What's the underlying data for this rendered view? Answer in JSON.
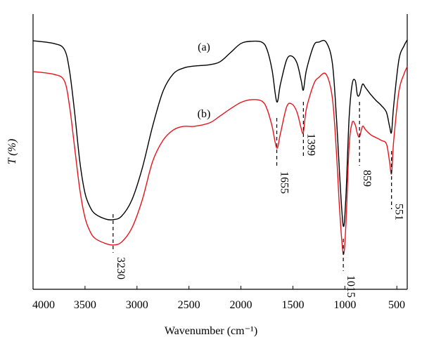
{
  "chart_data": {
    "type": "line",
    "xlabel": "Wavenumber (cm⁻¹)",
    "ylabel": "T (%)",
    "xlim": [
      4000,
      400
    ],
    "xticks": [
      4000,
      3500,
      3000,
      2500,
      2000,
      1500,
      1000,
      500
    ],
    "ylim": [
      0,
      100
    ],
    "x": [
      4000,
      3800,
      3700,
      3650,
      3600,
      3550,
      3500,
      3450,
      3400,
      3300,
      3230,
      3150,
      3050,
      2950,
      2850,
      2750,
      2650,
      2550,
      2450,
      2300,
      2200,
      2100,
      2000,
      1900,
      1800,
      1750,
      1700,
      1655,
      1620,
      1560,
      1510,
      1460,
      1420,
      1399,
      1370,
      1300,
      1250,
      1180,
      1120,
      1080,
      1050,
      1015,
      990,
      960,
      930,
      900,
      880,
      859,
      830,
      800,
      750,
      700,
      650,
      600,
      570,
      551,
      530,
      480,
      430,
      400
    ],
    "series": [
      {
        "name": "(a)",
        "color": "#000000",
        "values": [
          90.3,
          89.3,
          87.2,
          79.6,
          64.3,
          46.4,
          34.9,
          29.8,
          27.3,
          25.5,
          25.3,
          26.5,
          32.4,
          43.9,
          59.2,
          71.9,
          78.3,
          80.4,
          81.1,
          81.6,
          82.7,
          86.0,
          89.3,
          90.1,
          89.8,
          87.2,
          79.6,
          68.1,
          74.5,
          83.4,
          84.7,
          82.1,
          75.8,
          72.4,
          79.6,
          88.5,
          89.8,
          89.8,
          82.1,
          61.7,
          41.3,
          23.0,
          33.7,
          61.7,
          74.5,
          75.8,
          70.7,
          70.7,
          74.5,
          73.2,
          70.7,
          68.6,
          66.8,
          64.3,
          59.2,
          57.1,
          66.8,
          83.4,
          88.5,
          90.6
        ]
      },
      {
        "name": "(b)",
        "color": "#e8141c",
        "values": [
          79.1,
          78.1,
          75.8,
          66.8,
          51.5,
          36.2,
          26.0,
          20.9,
          18.4,
          16.6,
          16.1,
          17.1,
          22.2,
          32.4,
          46.4,
          54.1,
          57.9,
          59.2,
          59.2,
          60.5,
          63.0,
          65.6,
          67.9,
          68.9,
          68.4,
          65.6,
          59.2,
          51.3,
          56.6,
          66.3,
          67.3,
          64.3,
          58.4,
          57.1,
          65.6,
          74.5,
          77.0,
          78.1,
          69.4,
          49.0,
          28.6,
          12.8,
          23.5,
          51.5,
          60.5,
          59.7,
          56.6,
          55.4,
          59.2,
          57.9,
          56.1,
          55.1,
          54.1,
          52.8,
          46.4,
          42.1,
          54.1,
          71.9,
          78.3,
          80.9
        ]
      }
    ],
    "annotations": [
      {
        "text": "3230",
        "x": 3230
      },
      {
        "text": "1655",
        "x": 1655
      },
      {
        "text": "1399",
        "x": 1399
      },
      {
        "text": "1015",
        "x": 1015
      },
      {
        "text": "859",
        "x": 859
      },
      {
        "text": "551",
        "x": 551
      }
    ]
  }
}
